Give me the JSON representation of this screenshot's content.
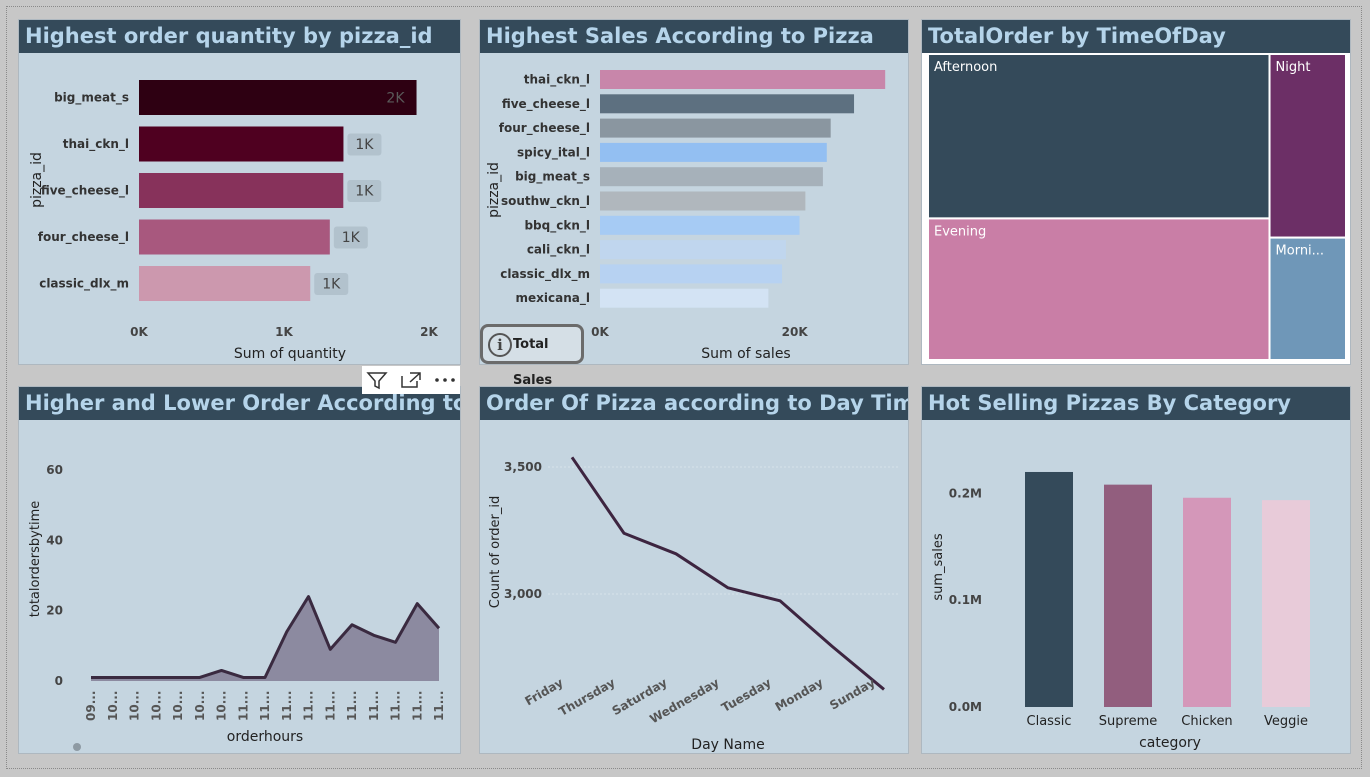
{
  "panels": {
    "p1_title": "Highest order quantity by pizza_id",
    "p2_title": "Highest Sales According to Pizza",
    "p3_title": "TotalOrder by TimeOfDay",
    "p4_title": "Higher and Lower Order According to time",
    "p5_title": "Order Of Pizza according to Day Time",
    "p6_title": "Hot Selling Pizzas By Category"
  },
  "info_button": {
    "label": "Total Sales",
    "icon": "info-icon"
  },
  "toolbar": {
    "icons": [
      "filter-icon",
      "focus-mode-icon",
      "more-options-icon"
    ]
  },
  "chart_data": [
    {
      "type": "bar",
      "orientation": "horizontal",
      "xlabel": "Sum of quantity",
      "ylabel": "pizza_id",
      "categories": [
        "big_meat_s",
        "thai_ckn_l",
        "five_cheese_l",
        "four_cheese_l",
        "classic_dlx_m"
      ],
      "values": [
        1914,
        1410,
        1409,
        1316,
        1181
      ],
      "data_labels": [
        "2K",
        "1K",
        "1K",
        "1K",
        "1K"
      ],
      "colors": [
        "#2e0012",
        "#4f0020",
        "#87325b",
        "#a8587e",
        "#cc98ae"
      ],
      "xlim": [
        0,
        2000
      ],
      "xticks": [
        "0K",
        "1K",
        "2K"
      ]
    },
    {
      "type": "bar",
      "orientation": "horizontal",
      "xlabel": "Sum of sales",
      "ylabel": "pizza_id",
      "categories": [
        "thai_ckn_l",
        "five_cheese_l",
        "four_cheese_l",
        "spicy_ital_l",
        "big_meat_s",
        "southw_ckn_l",
        "bbq_ckn_l",
        "cali_ckn_l",
        "classic_dlx_m",
        "mexicana_l"
      ],
      "values": [
        29300,
        26100,
        23700,
        23300,
        22900,
        21100,
        20500,
        19100,
        18700,
        17300
      ],
      "colors": [
        "#c886aa",
        "#5d7080",
        "#8a96a0",
        "#93bff2",
        "#a6b1ba",
        "#b0b7bd",
        "#a6cbf4",
        "#c0d6ee",
        "#b7d2f2",
        "#d3e3f4"
      ],
      "xlim": [
        0,
        30000
      ],
      "xticks": [
        "0K",
        "20K"
      ]
    },
    {
      "type": "treemap",
      "title_field": "TotalOrder",
      "categories": [
        "Afternoon",
        "Evening",
        "Night",
        "Morning"
      ],
      "display_labels": [
        "Afternoon",
        "Evening",
        "Night",
        "Morni..."
      ],
      "values": [
        360,
        310,
        90,
        60
      ],
      "colors": [
        "#344a5a",
        "#c97ea6",
        "#6c2f66",
        "#6f97b8"
      ]
    },
    {
      "type": "area",
      "xlabel": "orderhours",
      "ylabel": "totalordersbytime",
      "tick_labels": [
        "09...",
        "10...",
        "10...",
        "10...",
        "10...",
        "10...",
        "10...",
        "11...",
        "11...",
        "11...",
        "11...",
        "11...",
        "11...",
        "11...",
        "11...",
        "11...",
        "11..."
      ],
      "values": [
        1,
        1,
        1,
        1,
        1,
        1,
        3,
        1,
        1,
        14,
        24,
        9,
        16,
        13,
        11,
        22,
        15
      ],
      "ylim": [
        0,
        65
      ],
      "yticks": [
        0,
        20,
        40,
        60
      ],
      "line_color": "#3a2a40",
      "fill_color": "#8c8aa0"
    },
    {
      "type": "line",
      "xlabel": "Day Name",
      "ylabel": "Count of order_id",
      "categories": [
        "Friday",
        "Thursday",
        "Saturday",
        "Wednesday",
        "Tuesday",
        "Monday",
        "Sunday"
      ],
      "values": [
        3538,
        3239,
        3158,
        3024,
        2973,
        2794,
        2624
      ],
      "ylim": [
        2610,
        3610
      ],
      "yticks": [
        3000,
        3500
      ],
      "ytick_labels": [
        "3,000",
        "3,500"
      ],
      "line_color": "#3d2540"
    },
    {
      "type": "bar",
      "orientation": "vertical",
      "xlabel": "category",
      "ylabel": "sum_sales",
      "categories": [
        "Classic",
        "Supreme",
        "Chicken",
        "Veggie"
      ],
      "values": [
        220053,
        208197,
        195920,
        193690
      ],
      "colors": [
        "#344a5a",
        "#925e7e",
        "#d497b9",
        "#e8cbd9"
      ],
      "ylim": [
        0,
        250000
      ],
      "yticks": [
        0,
        100000,
        200000
      ],
      "ytick_labels": [
        "0.0M",
        "0.1M",
        "0.2M"
      ]
    }
  ]
}
